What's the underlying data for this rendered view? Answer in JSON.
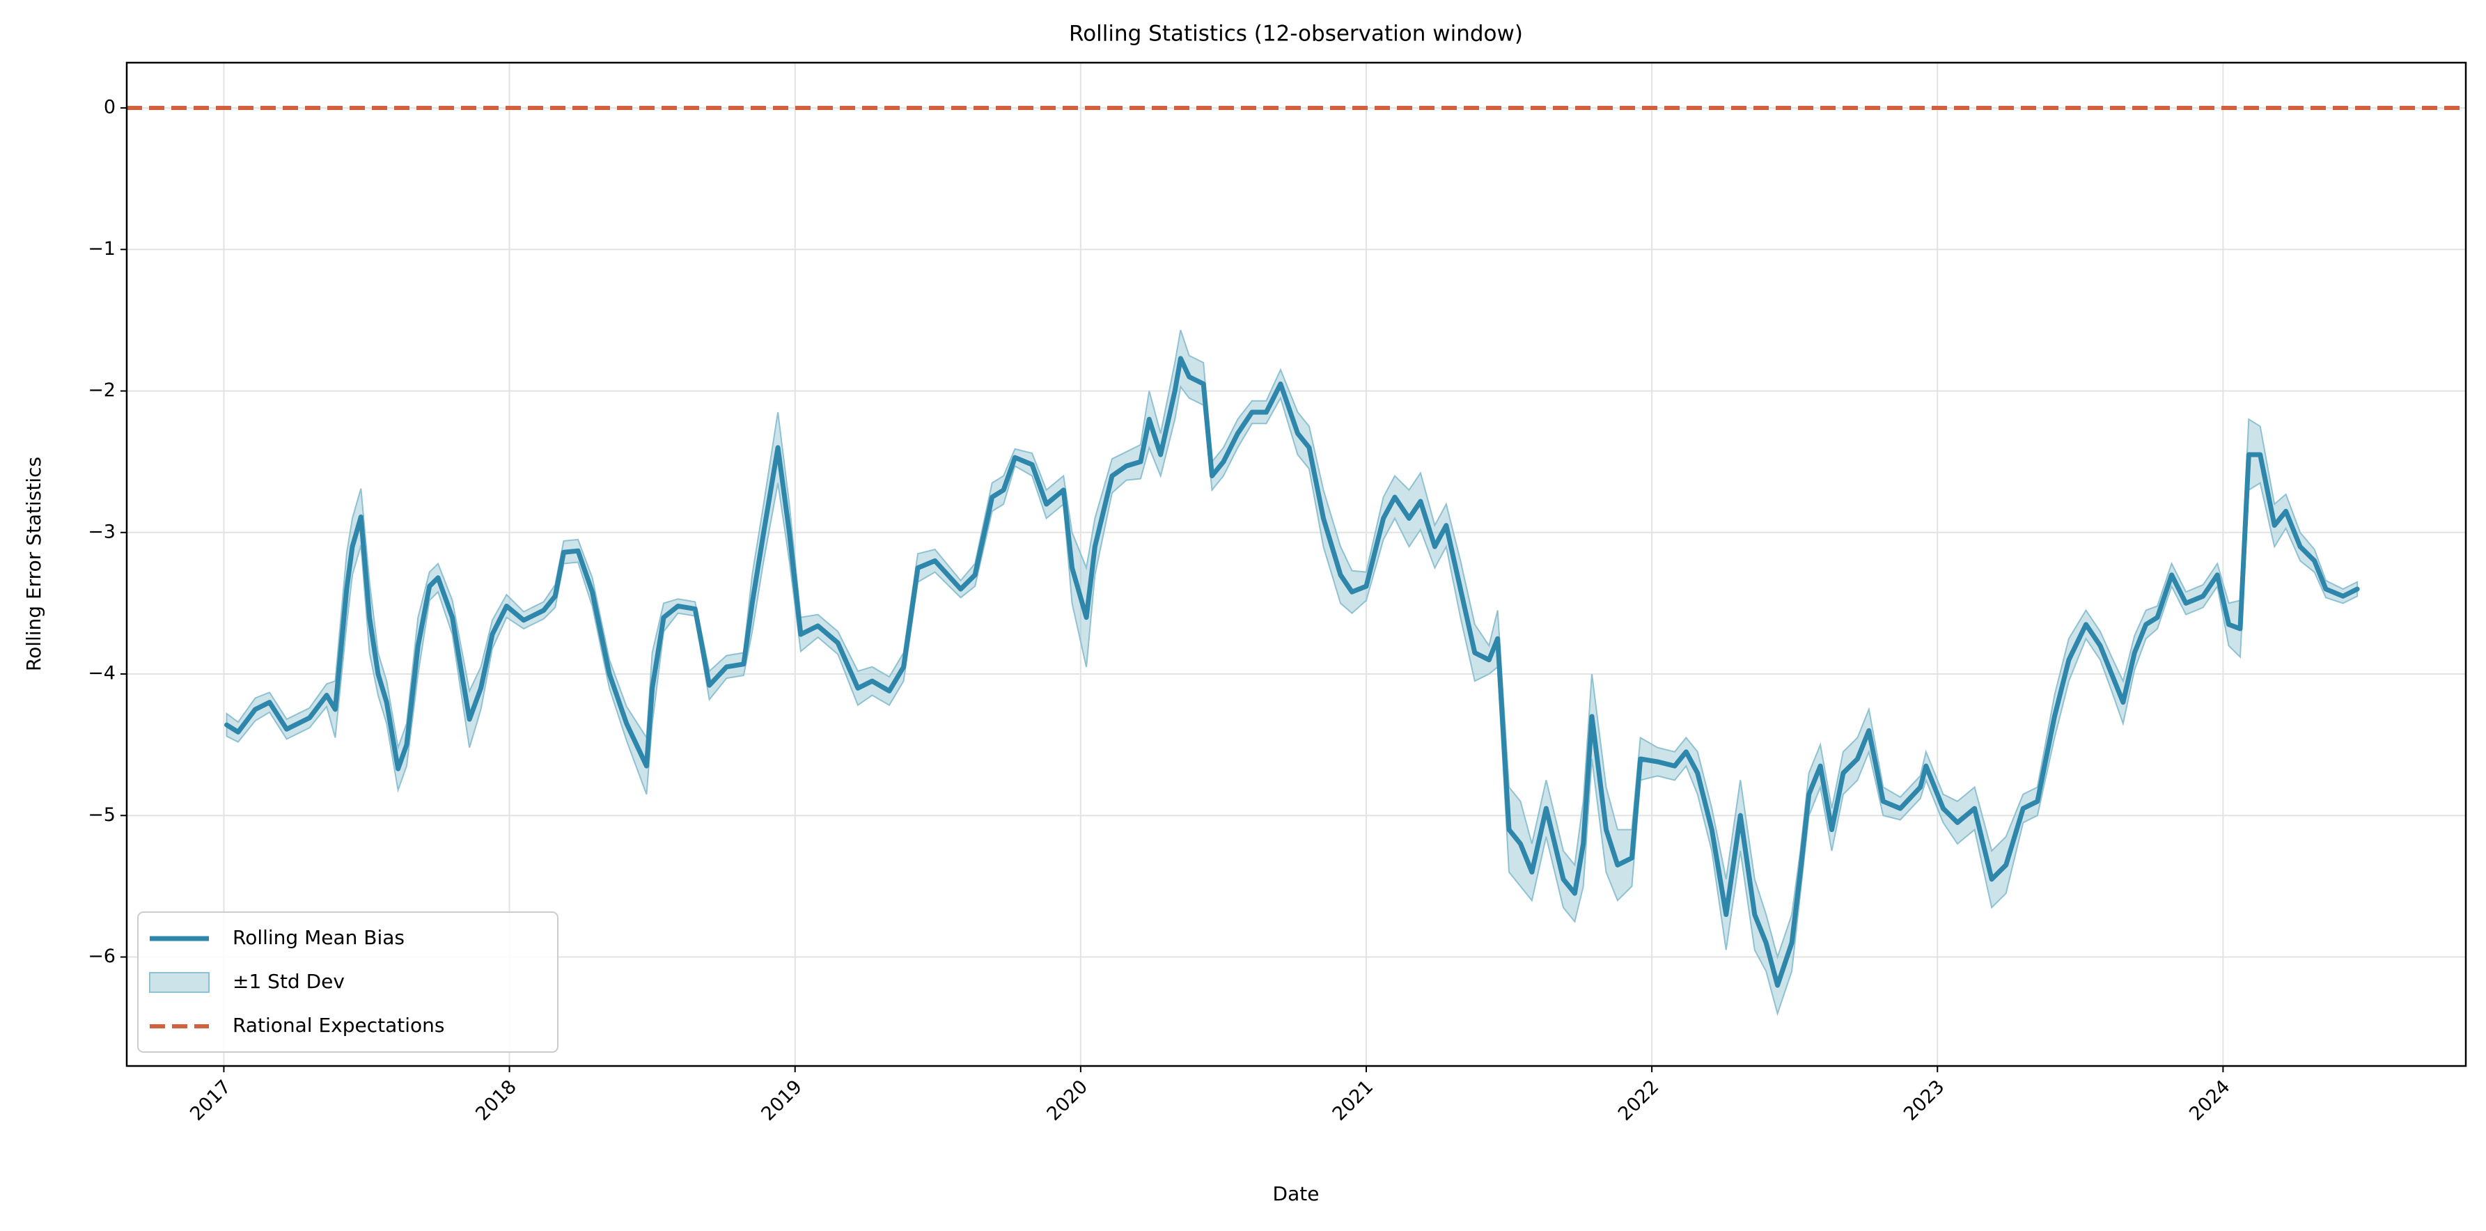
{
  "chart_data": {
    "type": "line",
    "title": "Rolling Statistics (12-observation window)",
    "x_label": "Date",
    "y_label": "Rolling Error Statistics",
    "xlim": [
      2016.66,
      2024.85
    ],
    "ylim": [
      -6.77,
      0.32
    ],
    "xticks": [
      2017,
      2018,
      2019,
      2020,
      2021,
      2022,
      2023,
      2024
    ],
    "yticks": [
      {
        "value": -6,
        "label": "−6"
      },
      {
        "value": -5,
        "label": "−5"
      },
      {
        "value": -4,
        "label": "−4"
      },
      {
        "value": -3,
        "label": "−3"
      },
      {
        "value": -2,
        "label": "−2"
      },
      {
        "value": -1,
        "label": "−1"
      },
      0
    ],
    "grid": true,
    "legend": "lower left",
    "x": [
      2017.01,
      2017.05,
      2017.11,
      2017.16,
      2017.22,
      2017.3,
      2017.36,
      2017.39,
      2017.43,
      2017.45,
      2017.48,
      2017.51,
      2017.54,
      2017.57,
      2017.61,
      2017.64,
      2017.68,
      2017.72,
      2017.75,
      2017.8,
      2017.86,
      2017.9,
      2017.94,
      2017.99,
      2018.05,
      2018.12,
      2018.16,
      2018.19,
      2018.24,
      2018.29,
      2018.35,
      2018.41,
      2018.48,
      2018.5,
      2018.54,
      2018.59,
      2018.65,
      2018.7,
      2018.76,
      2018.82,
      2018.85,
      2018.89,
      2018.94,
      2018.98,
      2019.02,
      2019.08,
      2019.15,
      2019.22,
      2019.27,
      2019.33,
      2019.38,
      2019.43,
      2019.49,
      2019.58,
      2019.63,
      2019.69,
      2019.73,
      2019.77,
      2019.83,
      2019.88,
      2019.94,
      2019.97,
      2020.02,
      2020.05,
      2020.11,
      2020.16,
      2020.21,
      2020.24,
      2020.28,
      2020.33,
      2020.35,
      2020.38,
      2020.43,
      2020.46,
      2020.5,
      2020.55,
      2020.6,
      2020.65,
      2020.7,
      2020.76,
      2020.8,
      2020.85,
      2020.91,
      2020.95,
      2021.0,
      2021.06,
      2021.1,
      2021.15,
      2021.19,
      2021.24,
      2021.28,
      2021.33,
      2021.38,
      2021.43,
      2021.46,
      2021.5,
      2021.54,
      2021.58,
      2021.63,
      2021.69,
      2021.73,
      2021.76,
      2021.79,
      2021.84,
      2021.88,
      2021.93,
      2021.96,
      2022.02,
      2022.08,
      2022.12,
      2022.16,
      2022.21,
      2022.26,
      2022.31,
      2022.36,
      2022.4,
      2022.44,
      2022.49,
      2022.52,
      2022.55,
      2022.59,
      2022.63,
      2022.67,
      2022.72,
      2022.76,
      2022.81,
      2022.87,
      2022.94,
      2022.96,
      2023.02,
      2023.07,
      2023.13,
      2023.19,
      2023.24,
      2023.3,
      2023.35,
      2023.41,
      2023.46,
      2023.52,
      2023.57,
      2023.61,
      2023.65,
      2023.69,
      2023.73,
      2023.77,
      2023.82,
      2023.87,
      2023.93,
      2023.98,
      2024.02,
      2024.06,
      2024.09,
      2024.13,
      2024.18,
      2024.22,
      2024.27,
      2024.32,
      2024.36,
      2024.42,
      2024.47
    ],
    "series": [
      {
        "name": "Rolling Mean Bias",
        "color": "#2e86ab",
        "values": [
          -4.36,
          -4.41,
          -4.25,
          -4.2,
          -4.39,
          -4.31,
          -4.15,
          -4.25,
          -3.4,
          -3.1,
          -2.89,
          -3.6,
          -4.0,
          -4.2,
          -4.67,
          -4.5,
          -3.8,
          -3.38,
          -3.32,
          -3.6,
          -4.32,
          -4.1,
          -3.72,
          -3.52,
          -3.62,
          -3.55,
          -3.45,
          -3.14,
          -3.13,
          -3.42,
          -4.0,
          -4.35,
          -4.65,
          -4.1,
          -3.6,
          -3.52,
          -3.54,
          -4.08,
          -3.95,
          -3.93,
          -3.5,
          -3.0,
          -2.4,
          -3.0,
          -3.72,
          -3.66,
          -3.78,
          -4.1,
          -4.05,
          -4.12,
          -3.95,
          -3.25,
          -3.2,
          -3.4,
          -3.3,
          -2.75,
          -2.7,
          -2.47,
          -2.52,
          -2.8,
          -2.7,
          -3.25,
          -3.6,
          -3.1,
          -2.6,
          -2.53,
          -2.5,
          -2.2,
          -2.45,
          -2.0,
          -1.77,
          -1.9,
          -1.95,
          -2.6,
          -2.5,
          -2.3,
          -2.15,
          -2.15,
          -1.95,
          -2.3,
          -2.4,
          -2.9,
          -3.3,
          -3.42,
          -3.38,
          -2.9,
          -2.75,
          -2.9,
          -2.78,
          -3.1,
          -2.95,
          -3.4,
          -3.85,
          -3.9,
          -3.75,
          -5.1,
          -5.2,
          -5.4,
          -4.95,
          -5.45,
          -5.55,
          -5.2,
          -4.3,
          -5.1,
          -5.35,
          -5.3,
          -4.6,
          -4.62,
          -4.65,
          -4.55,
          -4.7,
          -5.1,
          -5.7,
          -5.0,
          -5.7,
          -5.9,
          -6.2,
          -5.9,
          -5.4,
          -4.85,
          -4.65,
          -5.1,
          -4.7,
          -4.6,
          -4.4,
          -4.9,
          -4.95,
          -4.8,
          -4.65,
          -4.95,
          -5.05,
          -4.95,
          -5.45,
          -5.35,
          -4.95,
          -4.9,
          -4.3,
          -3.9,
          -3.65,
          -3.8,
          -4.0,
          -4.2,
          -3.85,
          -3.65,
          -3.6,
          -3.3,
          -3.5,
          -3.45,
          -3.3,
          -3.65,
          -3.68,
          -2.45,
          -2.45,
          -2.95,
          -2.85,
          -3.1,
          -3.2,
          -3.4,
          -3.45,
          -3.4
        ],
        "std": [
          0.08,
          0.07,
          0.08,
          0.07,
          0.07,
          0.07,
          0.08,
          0.2,
          0.25,
          0.2,
          0.2,
          0.25,
          0.15,
          0.15,
          0.15,
          0.15,
          0.2,
          0.1,
          0.1,
          0.12,
          0.2,
          0.15,
          0.1,
          0.08,
          0.06,
          0.06,
          0.08,
          0.08,
          0.08,
          0.1,
          0.1,
          0.12,
          0.2,
          0.25,
          0.1,
          0.05,
          0.05,
          0.1,
          0.08,
          0.08,
          0.2,
          0.2,
          0.25,
          0.2,
          0.12,
          0.08,
          0.08,
          0.12,
          0.1,
          0.1,
          0.1,
          0.1,
          0.08,
          0.06,
          0.08,
          0.1,
          0.1,
          0.06,
          0.08,
          0.1,
          0.1,
          0.25,
          0.35,
          0.2,
          0.12,
          0.1,
          0.12,
          0.2,
          0.15,
          0.2,
          0.2,
          0.15,
          0.15,
          0.1,
          0.1,
          0.1,
          0.08,
          0.08,
          0.1,
          0.15,
          0.15,
          0.2,
          0.2,
          0.15,
          0.1,
          0.15,
          0.15,
          0.2,
          0.2,
          0.15,
          0.15,
          0.2,
          0.2,
          0.1,
          0.2,
          0.3,
          0.3,
          0.2,
          0.2,
          0.2,
          0.2,
          0.3,
          0.3,
          0.3,
          0.25,
          0.2,
          0.15,
          0.1,
          0.1,
          0.1,
          0.15,
          0.15,
          0.25,
          0.25,
          0.25,
          0.2,
          0.2,
          0.2,
          0.15,
          0.15,
          0.15,
          0.15,
          0.15,
          0.15,
          0.15,
          0.1,
          0.08,
          0.08,
          0.1,
          0.1,
          0.15,
          0.15,
          0.2,
          0.2,
          0.1,
          0.1,
          0.15,
          0.15,
          0.1,
          0.1,
          0.12,
          0.15,
          0.12,
          0.1,
          0.08,
          0.08,
          0.08,
          0.08,
          0.08,
          0.15,
          0.2,
          0.25,
          0.2,
          0.15,
          0.12,
          0.1,
          0.08,
          0.06,
          0.05,
          0.05
        ]
      }
    ],
    "band": {
      "name": "±1 Std Dev",
      "color": "#8ec1d1"
    },
    "reference_line": {
      "name": "Rational Expectations",
      "value": 0,
      "color": "#d1603d"
    }
  }
}
